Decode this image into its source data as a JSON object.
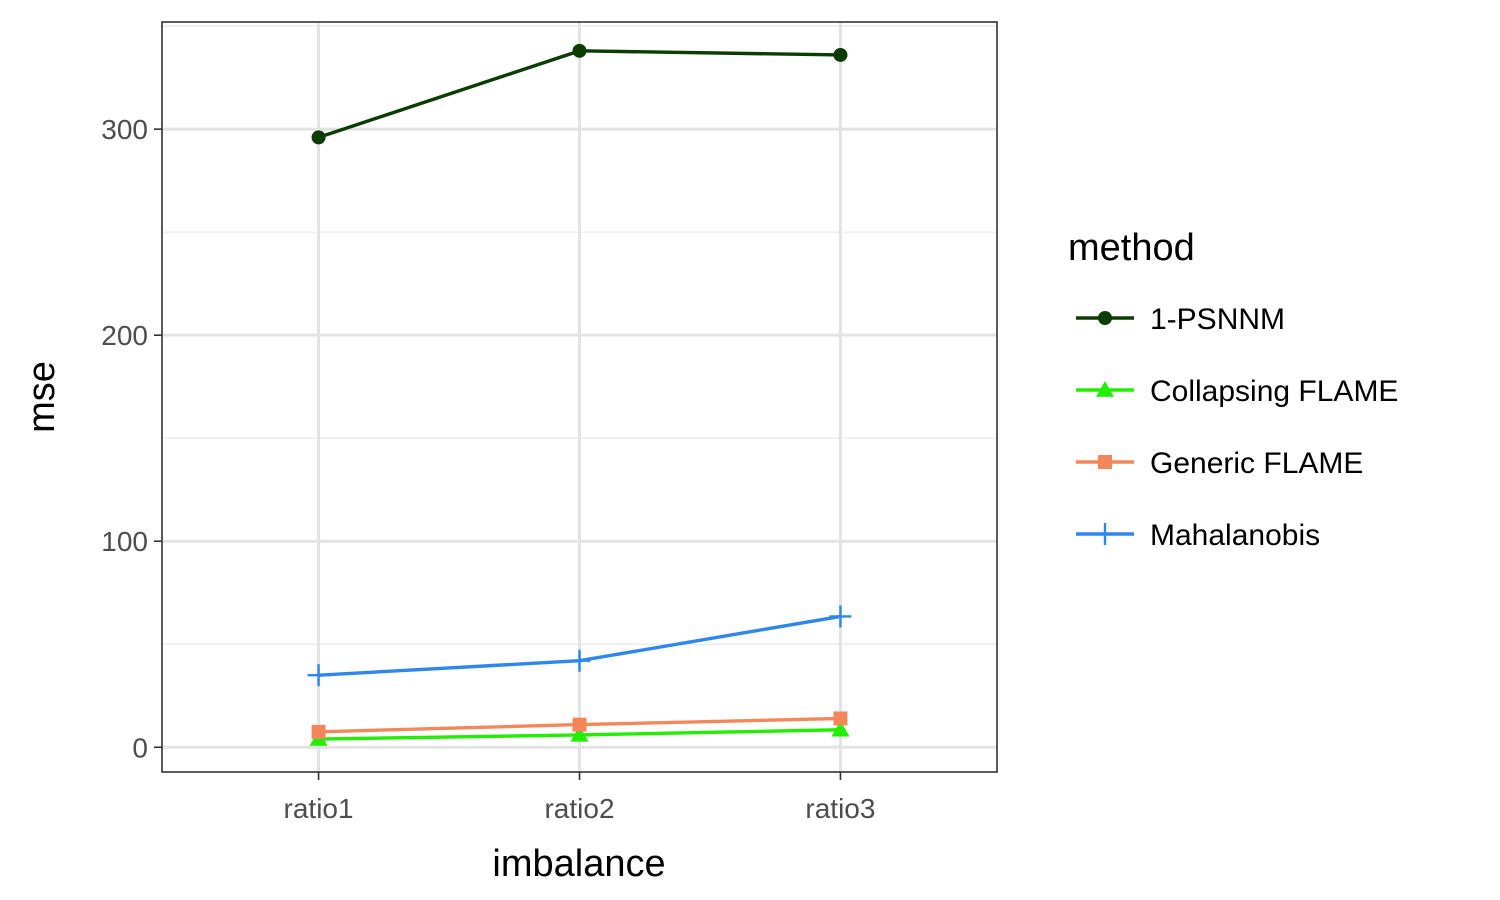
{
  "chart_data": {
    "type": "line",
    "title": "",
    "xlabel": "imbalance",
    "ylabel": "mse",
    "categories": [
      "ratio1",
      "ratio2",
      "ratio3"
    ],
    "ylim": [
      -12,
      352
    ],
    "yticks": [
      0,
      100,
      200,
      300
    ],
    "ytick_labels": [
      "0",
      "100",
      "200",
      "300"
    ],
    "grid": true,
    "legend": {
      "title": "method",
      "position": "right"
    },
    "series": [
      {
        "name": "1-PSNNM",
        "values": [
          296,
          338,
          336
        ],
        "color": "#0b3d02",
        "marker": "circle"
      },
      {
        "name": "Collapsing FLAME",
        "values": [
          4,
          6,
          8.5
        ],
        "color": "#22ee00",
        "marker": "triangle"
      },
      {
        "name": "Generic FLAME",
        "values": [
          7.5,
          11,
          14
        ],
        "color": "#f4875a",
        "marker": "square"
      },
      {
        "name": "Mahalanobis",
        "values": [
          35,
          42,
          63.5
        ],
        "color": "#2f86ee",
        "marker": "plus"
      }
    ]
  }
}
